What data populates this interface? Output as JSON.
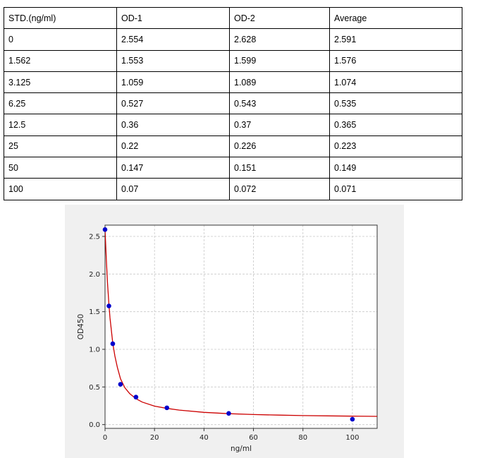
{
  "table": {
    "headers": [
      "STD.(ng/ml)",
      "OD-1",
      "OD-2",
      "Average"
    ],
    "rows": [
      [
        "0",
        "2.554",
        "2.628",
        "2.591"
      ],
      [
        "1.562",
        "1.553",
        "1.599",
        "1.576"
      ],
      [
        "3.125",
        "1.059",
        "1.089",
        "1.074"
      ],
      [
        "6.25",
        "0.527",
        "0.543",
        "0.535"
      ],
      [
        "12.5",
        "0.36",
        "0.37",
        "0.365"
      ],
      [
        "25",
        "0.22",
        "0.226",
        "0.223"
      ],
      [
        "50",
        "0.147",
        "0.151",
        "0.149"
      ],
      [
        "100",
        "0.07",
        "0.072",
        "0.071"
      ]
    ]
  },
  "chart_data": {
    "type": "scatter",
    "xlabel": "ng/ml",
    "ylabel": "OD450",
    "xlim": [
      0,
      110
    ],
    "ylim": [
      -0.05,
      2.65
    ],
    "xticks": [
      0,
      20,
      40,
      60,
      80,
      100
    ],
    "yticks": [
      0.0,
      0.5,
      1.0,
      1.5,
      2.0,
      2.5
    ],
    "xtick_labels": [
      "0",
      "20",
      "40",
      "60",
      "80",
      "100"
    ],
    "ytick_labels": [
      "0.0",
      "0.5",
      "1.0",
      "1.5",
      "2.0",
      "2.5"
    ],
    "grid": true,
    "series": [
      {
        "kind": "points",
        "color": "#0000cc",
        "x": [
          0,
          1.562,
          3.125,
          6.25,
          12.5,
          25,
          50,
          100
        ],
        "y": [
          2.591,
          1.576,
          1.074,
          0.535,
          0.365,
          0.223,
          0.149,
          0.071
        ]
      },
      {
        "kind": "fitted-curve",
        "color": "#cc0000",
        "x": [
          0,
          0.5,
          1,
          1.562,
          2,
          3.125,
          4,
          5,
          6.25,
          8,
          10,
          12.5,
          15,
          20,
          25,
          30,
          40,
          50,
          60,
          70,
          80,
          90,
          100,
          110
        ],
        "y": [
          2.591,
          2.2,
          1.88,
          1.6,
          1.42,
          1.08,
          0.91,
          0.76,
          0.61,
          0.49,
          0.41,
          0.345,
          0.3,
          0.245,
          0.215,
          0.193,
          0.163,
          0.145,
          0.134,
          0.126,
          0.12,
          0.116,
          0.112,
          0.109
        ]
      }
    ]
  }
}
